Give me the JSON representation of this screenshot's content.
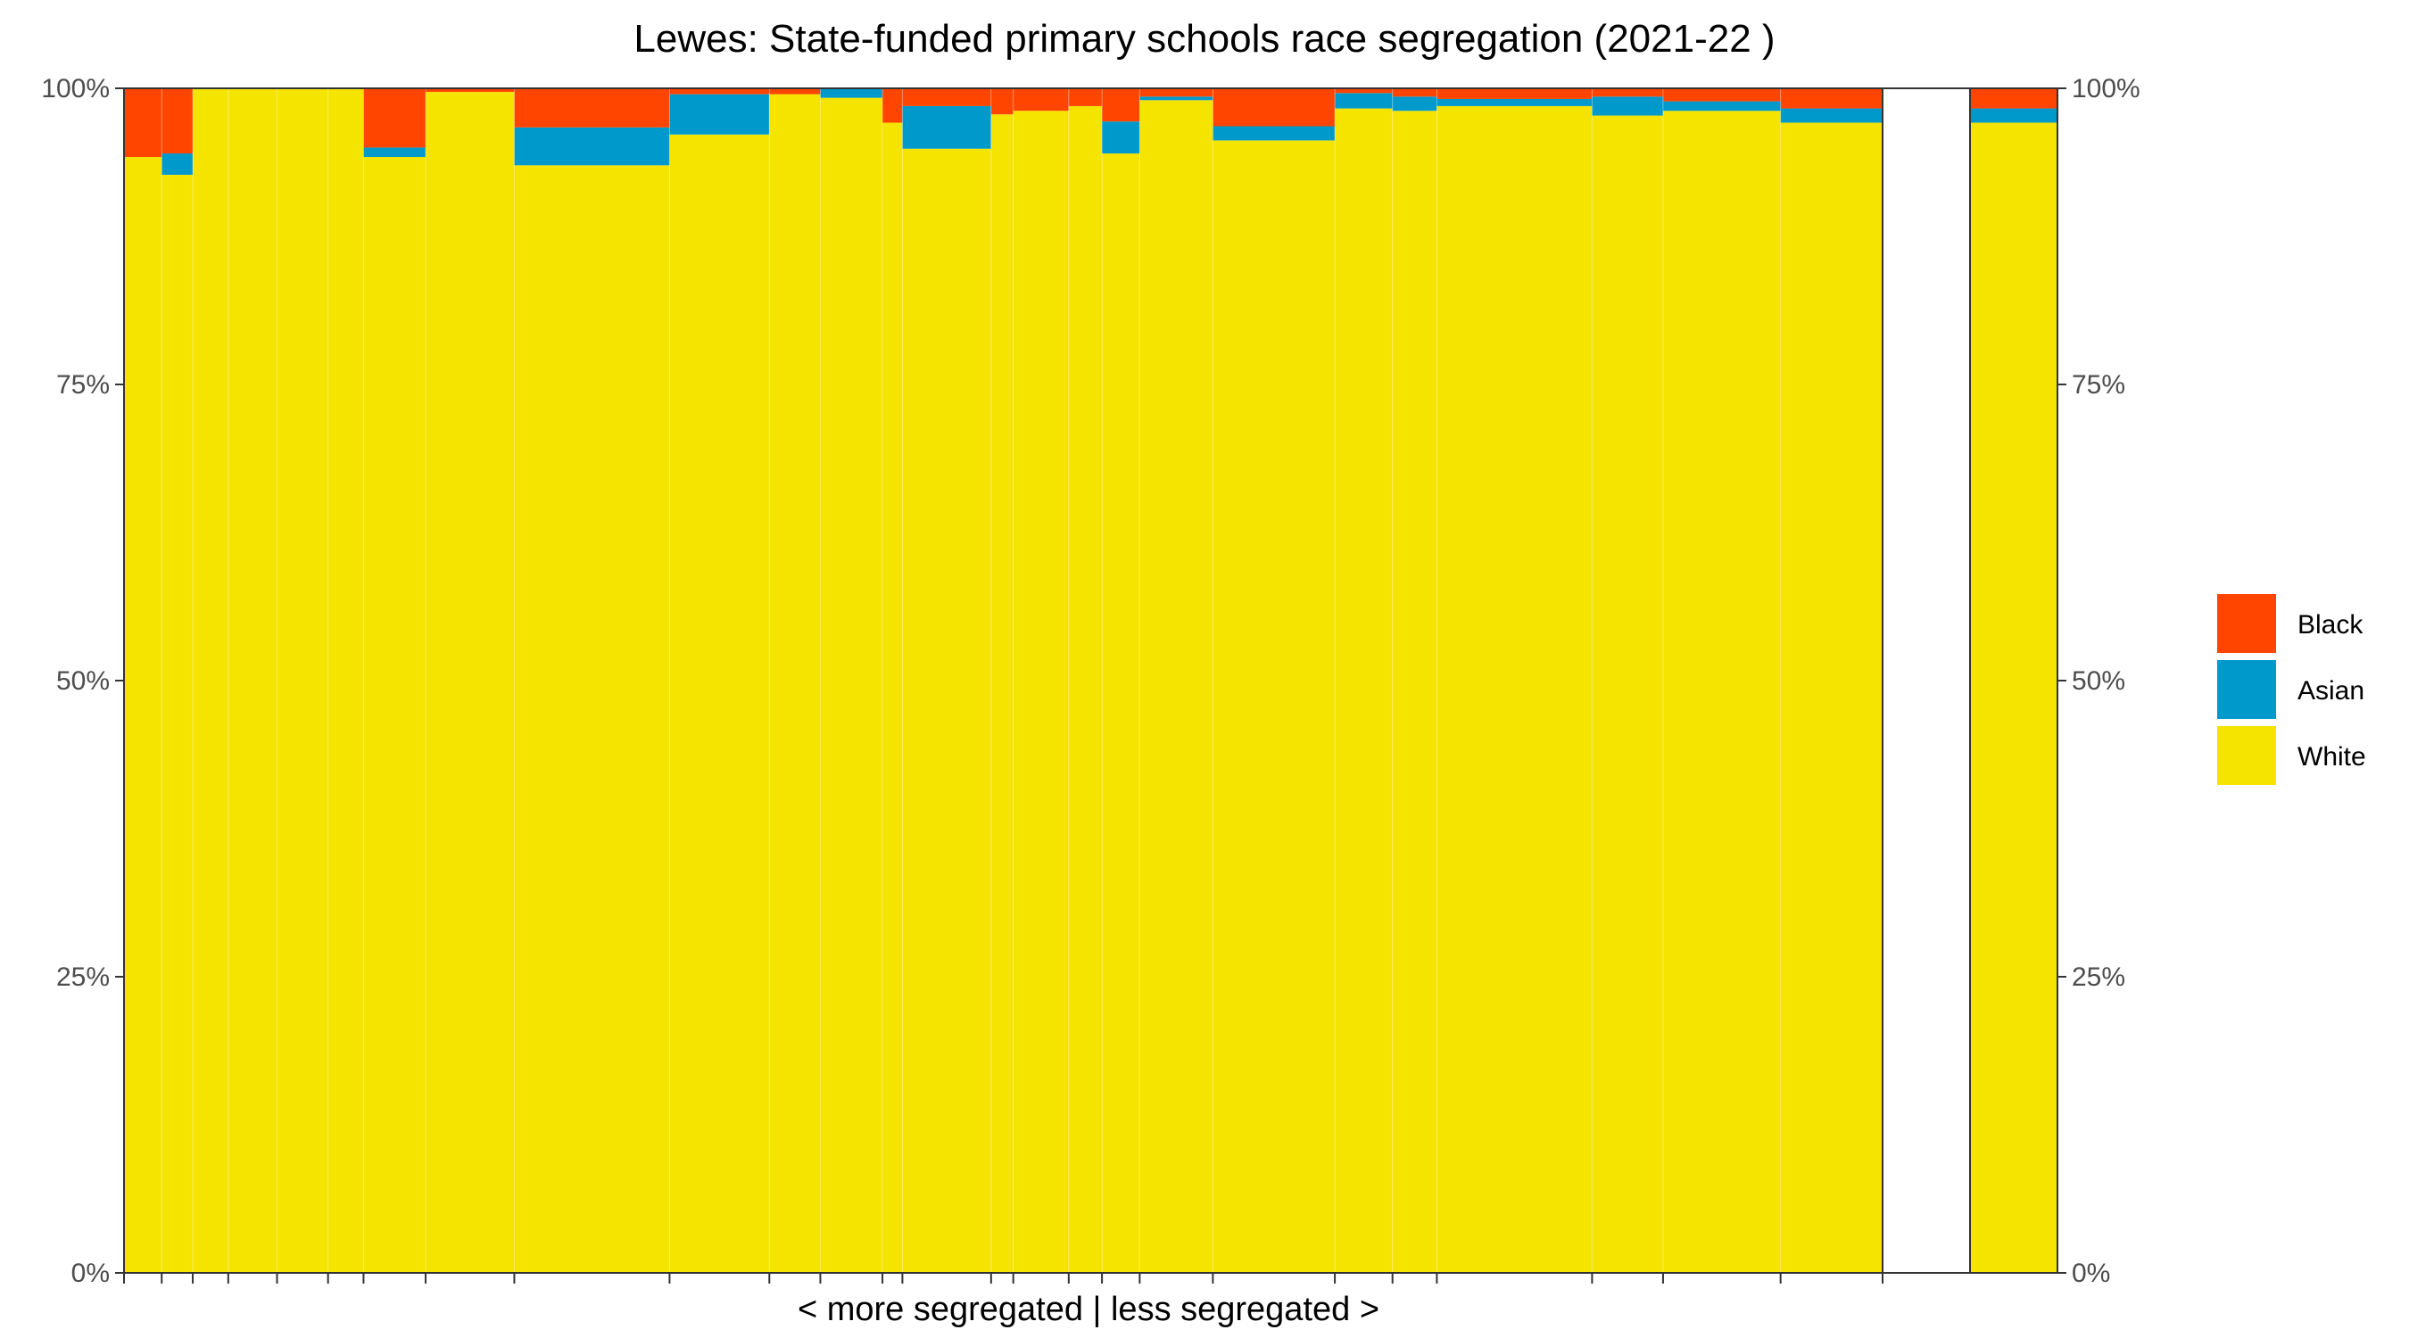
{
  "chart_data": {
    "type": "bar",
    "subtype": "stacked-100-percent-variable-width",
    "title": "Lewes: State-funded primary schools race segregation (2021-22 )",
    "xlabel": "< more segregated | less segregated >",
    "ylabel": "",
    "ylim": [
      0,
      100
    ],
    "y_ticks": [
      "0%",
      "25%",
      "50%",
      "75%",
      "100%"
    ],
    "y_tick_values": [
      0,
      25,
      50,
      75,
      100
    ],
    "grid": false,
    "legend_position": "right",
    "series": [
      {
        "name": "Black",
        "color": "#FF4500"
      },
      {
        "name": "Asian",
        "color": "#0099CC"
      },
      {
        "name": "White",
        "color": "#F5E300"
      }
    ],
    "schools": [
      {
        "width": 17,
        "white": 94.2,
        "asian": 0.0,
        "black": 5.8
      },
      {
        "width": 14,
        "white": 92.7,
        "asian": 1.8,
        "black": 5.5
      },
      {
        "width": 16,
        "white": 100.0,
        "asian": 0.0,
        "black": 0.0
      },
      {
        "width": 22,
        "white": 100.0,
        "asian": 0.0,
        "black": 0.0
      },
      {
        "width": 23,
        "white": 100.0,
        "asian": 0.0,
        "black": 0.0
      },
      {
        "width": 16,
        "white": 100.0,
        "asian": 0.0,
        "black": 0.0
      },
      {
        "width": 28,
        "white": 94.2,
        "asian": 0.8,
        "black": 5.0
      },
      {
        "width": 40,
        "white": 99.7,
        "asian": 0.0,
        "black": 0.3
      },
      {
        "width": 70,
        "white": 93.5,
        "asian": 3.2,
        "black": 3.3
      },
      {
        "width": 45,
        "white": 96.1,
        "asian": 3.4,
        "black": 0.5
      },
      {
        "width": 23,
        "white": 99.5,
        "asian": 0.0,
        "black": 0.5
      },
      {
        "width": 28,
        "white": 99.2,
        "asian": 0.8,
        "black": 0.0
      },
      {
        "width": 9,
        "white": 97.1,
        "asian": 0.0,
        "black": 2.9
      },
      {
        "width": 40,
        "white": 94.9,
        "asian": 3.6,
        "black": 1.5
      },
      {
        "width": 10,
        "white": 97.8,
        "asian": 0.0,
        "black": 2.2
      },
      {
        "width": 25,
        "white": 98.1,
        "asian": 0.0,
        "black": 1.9
      },
      {
        "width": 15,
        "white": 98.5,
        "asian": 0.0,
        "black": 1.5
      },
      {
        "width": 17,
        "white": 94.5,
        "asian": 2.7,
        "black": 2.8
      },
      {
        "width": 33,
        "white": 99.0,
        "asian": 0.3,
        "black": 0.7
      },
      {
        "width": 55,
        "white": 95.6,
        "asian": 1.2,
        "black": 3.2
      },
      {
        "width": 26,
        "white": 98.3,
        "asian": 1.3,
        "black": 0.4
      },
      {
        "width": 20,
        "white": 98.1,
        "asian": 1.2,
        "black": 0.7
      },
      {
        "width": 70,
        "white": 98.5,
        "asian": 0.6,
        "black": 0.9
      },
      {
        "width": 32,
        "white": 97.7,
        "asian": 1.6,
        "black": 0.7
      },
      {
        "width": 53,
        "white": 98.1,
        "asian": 0.8,
        "black": 1.1
      },
      {
        "width": 46,
        "white": 97.1,
        "asian": 1.2,
        "black": 1.7
      }
    ],
    "overall": {
      "white": 97.1,
      "asian": 1.2,
      "black": 1.7
    }
  }
}
